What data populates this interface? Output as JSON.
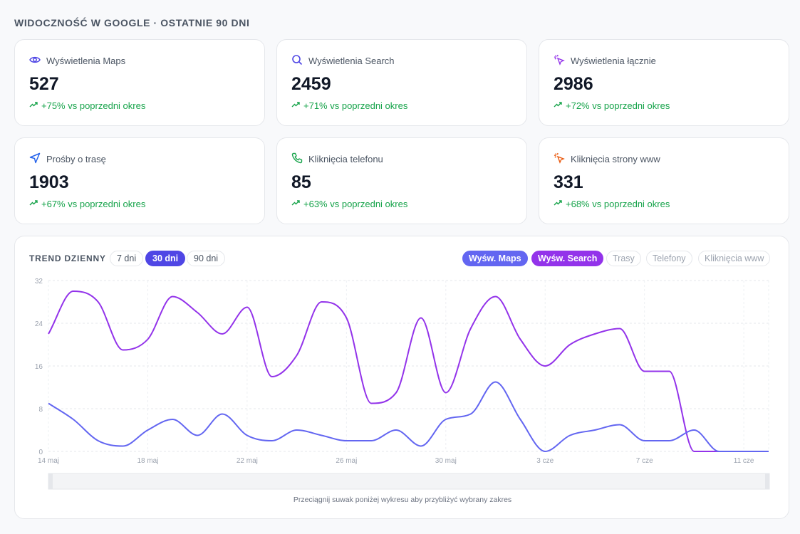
{
  "header": {
    "title": "WIDOCZNOŚĆ W GOOGLE · OSTATNIE 90 DNI"
  },
  "cards": [
    {
      "label": "Wyświetlenia Maps",
      "value": "527",
      "delta": "+75% vs poprzedni okres",
      "icon": "eye-icon",
      "icon_color": "#4f46e5"
    },
    {
      "label": "Wyświetlenia Search",
      "value": "2459",
      "delta": "+71% vs poprzedni okres",
      "icon": "search-icon",
      "icon_color": "#4f46e5"
    },
    {
      "label": "Wyświetlenia łącznie",
      "value": "2986",
      "delta": "+72% vs poprzedni okres",
      "icon": "cursor-click-icon",
      "icon_color": "#9333ea"
    },
    {
      "label": "Prośby o trasę",
      "value": "1903",
      "delta": "+67% vs poprzedni okres",
      "icon": "navigation-icon",
      "icon_color": "#2563eb"
    },
    {
      "label": "Kliknięcia telefonu",
      "value": "85",
      "delta": "+63% vs poprzedni okres",
      "icon": "phone-icon",
      "icon_color": "#16a34a"
    },
    {
      "label": "Kliknięcia strony www",
      "value": "331",
      "delta": "+68% vs poprzedni okres",
      "icon": "cursor-click-icon",
      "icon_color": "#ea580c"
    }
  ],
  "trend": {
    "title": "TREND DZIENNY",
    "ranges": [
      {
        "label": "7 dni",
        "active": false
      },
      {
        "label": "30 dni",
        "active": true
      },
      {
        "label": "90 dni",
        "active": false
      }
    ],
    "series_toggles": [
      {
        "label": "Wyśw. Maps",
        "on": true,
        "color": "#6366f1"
      },
      {
        "label": "Wyśw. Search",
        "on": true,
        "color": "#9333ea"
      },
      {
        "label": "Trasy",
        "on": false,
        "color": "#9ca3af"
      },
      {
        "label": "Telefony",
        "on": false,
        "color": "#9ca3af"
      },
      {
        "label": "Kliknięcia www",
        "on": false,
        "color": "#9ca3af"
      }
    ],
    "hint": "Przeciągnij suwak poniżej wykresu aby przybliżyć wybrany zakres"
  },
  "chart_data": {
    "type": "line",
    "title": "",
    "xlabel": "",
    "ylabel": "",
    "ylim": [
      0,
      32
    ],
    "yticks": [
      0,
      8,
      16,
      24,
      32
    ],
    "x_tick_labels": [
      {
        "index": 0,
        "label": "14 maj"
      },
      {
        "index": 4,
        "label": "18 maj"
      },
      {
        "index": 8,
        "label": "22 maj"
      },
      {
        "index": 12,
        "label": "26 maj"
      },
      {
        "index": 16,
        "label": "30 maj"
      },
      {
        "index": 20,
        "label": "3 cze"
      },
      {
        "index": 24,
        "label": "7 cze"
      },
      {
        "index": 28,
        "label": "11 cze"
      }
    ],
    "grid": true,
    "series": [
      {
        "name": "Wyśw. Search",
        "color": "#9333ea",
        "values": [
          22,
          30,
          28,
          19,
          21,
          29,
          26,
          22,
          27,
          14,
          18,
          28,
          25,
          9,
          11,
          25,
          11,
          23,
          29,
          21,
          16,
          20,
          22,
          23,
          15,
          15,
          0,
          0,
          0,
          0
        ]
      },
      {
        "name": "Wyśw. Maps",
        "color": "#6366f1",
        "values": [
          9,
          6,
          2,
          1,
          4,
          6,
          3,
          7,
          3,
          2,
          4,
          3,
          2,
          2,
          4,
          1,
          6,
          7,
          13,
          6,
          0,
          3,
          4,
          5,
          2,
          2,
          4,
          0,
          0,
          0
        ]
      }
    ]
  }
}
